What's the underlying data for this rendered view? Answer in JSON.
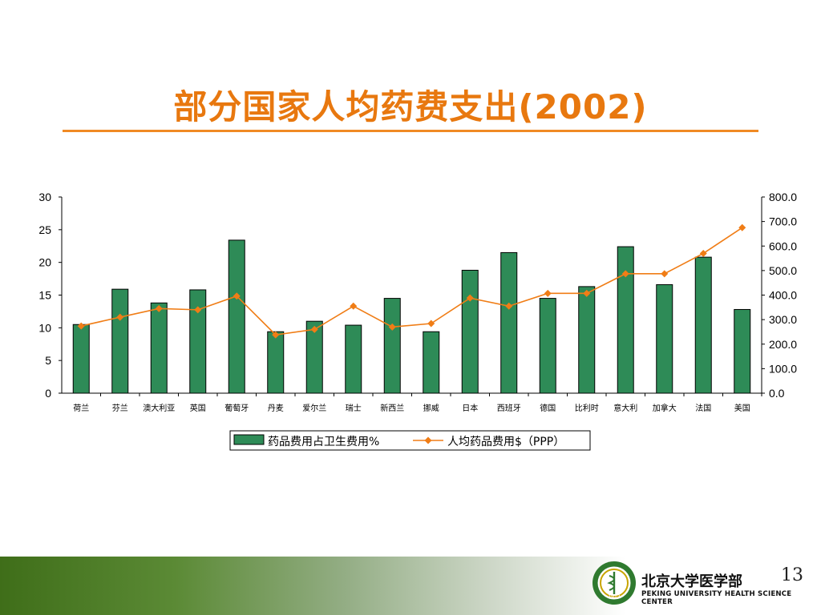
{
  "slide": {
    "title": "部分国家人均药费支出(2002)",
    "page_number": "13",
    "institution_cn": "北京大学医学部",
    "institution_en": "PEKING UNIVERSITY HEALTH SCIENCE CENTER",
    "logo_year": "1912"
  },
  "colors": {
    "title": "#e8780f",
    "bar": "#2e8b57",
    "line": "#f07d16"
  },
  "chart_data": {
    "type": "bar",
    "categories": [
      "荷兰",
      "芬兰",
      "澳大利亚",
      "英国",
      "葡萄牙",
      "丹麦",
      "爱尔兰",
      "瑞士",
      "新西兰",
      "挪威",
      "日本",
      "西班牙",
      "德国",
      "比利时",
      "意大利",
      "加拿大",
      "法国",
      "美国"
    ],
    "series": [
      {
        "name": "药品费用占卫生费用%",
        "type": "bar",
        "axis": "left",
        "values": [
          10.5,
          15.9,
          13.8,
          15.8,
          23.4,
          9.4,
          11.0,
          10.4,
          14.5,
          9.4,
          18.8,
          21.5,
          14.5,
          16.3,
          22.4,
          16.6,
          20.8,
          12.8
        ]
      },
      {
        "name": "人均药品费用$（PPP）",
        "type": "line",
        "axis": "right",
        "values": [
          274,
          310,
          345,
          340,
          396,
          238,
          260,
          355,
          270,
          284,
          388,
          355,
          407,
          407,
          487,
          487,
          570,
          675
        ]
      }
    ],
    "y_left": {
      "range": [
        0,
        30
      ],
      "ticks": [
        "0",
        "5",
        "10",
        "15",
        "20",
        "25",
        "30"
      ]
    },
    "y_right": {
      "range": [
        0,
        800
      ],
      "ticks": [
        "0.0",
        "100.0",
        "200.0",
        "300.0",
        "400.0",
        "500.0",
        "600.0",
        "700.0",
        "800.0"
      ]
    },
    "legend_position": "bottom",
    "grid": false
  }
}
